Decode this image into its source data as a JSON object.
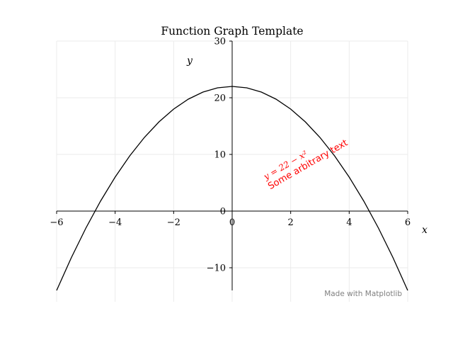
{
  "chart_data": {
    "type": "line",
    "title": "Function Graph Template",
    "xlabel": "x",
    "ylabel": "y",
    "xlim": [
      -6,
      6
    ],
    "ylim": [
      -16,
      30
    ],
    "x_ticks": [
      -6,
      -4,
      -2,
      0,
      2,
      4,
      6
    ],
    "x_tick_labels": [
      "−6",
      "−4",
      "−2",
      "0",
      "2",
      "4",
      "6"
    ],
    "y_ticks": [
      -10,
      0,
      10,
      20,
      30
    ],
    "y_tick_labels": [
      "−10",
      "0",
      "10",
      "20",
      "30"
    ],
    "grid": true,
    "series": [
      {
        "x": [
          -6,
          -5.5,
          -5,
          -4.5,
          -4,
          -3.5,
          -3,
          -2.5,
          -2,
          -1.5,
          -1,
          -0.5,
          0,
          0.5,
          1,
          1.5,
          2,
          2.5,
          3,
          3.5,
          4,
          4.5,
          5,
          5.5,
          6
        ],
        "y": [
          -14,
          -8.25,
          -3,
          1.75,
          6,
          9.75,
          13,
          15.75,
          18,
          19.75,
          21,
          21.75,
          22,
          21.75,
          21,
          19.75,
          18,
          15.75,
          13,
          9.75,
          6,
          1.75,
          -3,
          -8.25,
          -14
        ],
        "color": "#000000"
      }
    ],
    "annotations": [
      {
        "text": "y = 22 − x²",
        "x": 1.15,
        "y": 5.5,
        "rotation_deg": 30,
        "color": "#ff0000"
      },
      {
        "text": "Some arbitrary text",
        "x": 1.3,
        "y": 3.8,
        "rotation_deg": 30,
        "color": "#ff0000"
      }
    ],
    "watermark": {
      "text": "Made with Matplotlib",
      "color": "#808080"
    }
  }
}
